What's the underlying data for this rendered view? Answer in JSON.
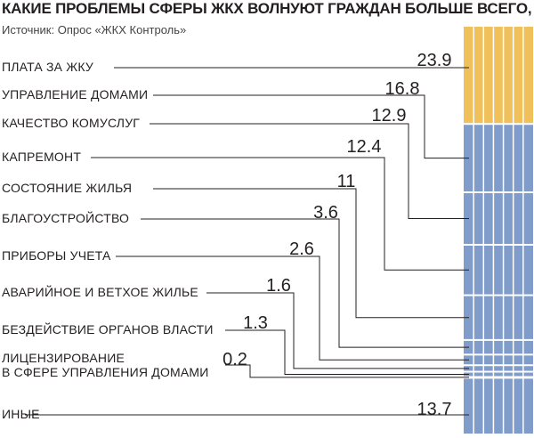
{
  "chart_data": {
    "type": "bar",
    "title": "КАКИЕ ПРОБЛЕМЫ СФЕРЫ ЖКХ ВОЛНУЮТ ГРАЖДАН БОЛЬШЕ ВСЕГО, %",
    "source": "Источник: Опрос «ЖКХ Контроль»",
    "categories": [
      [
        "ПЛАТА ЗА ЖКУ"
      ],
      [
        "УПРАВЛЕНИЕ ДОМАМИ"
      ],
      [
        "КАЧЕСТВО КОМУСЛУГ"
      ],
      [
        "КАПРЕМОНТ"
      ],
      [
        "СОСТОЯНИЕ ЖИЛЬЯ"
      ],
      [
        "БЛАГОУСТРОЙСТВО"
      ],
      [
        "ПРИБОРЫ УЧЕТА"
      ],
      [
        "АВАРИЙНОЕ И ВЕТХОЕ ЖИЛЬЕ"
      ],
      [
        "БЕЗДЕЙСТВИЕ ОРГАНОВ ВЛАСТИ"
      ],
      [
        "ЛИЦЕНЗИРОВАНИЕ",
        "В СФЕРЕ УПРАВЛЕНИЯ ДОМАМИ"
      ],
      [
        "ИНЫЕ"
      ]
    ],
    "values": [
      23.9,
      16.8,
      12.9,
      12.4,
      11,
      3.6,
      2.6,
      1.6,
      1.3,
      0.2,
      13.7
    ],
    "value_labels": [
      "23.9",
      "16.8",
      "12.9",
      "12.4",
      "11",
      "3.6",
      "2.6",
      "1.6",
      "1.3",
      "0.2",
      "13.7"
    ],
    "colors": {
      "highlight": "#f0c05a",
      "base": "#7f9ccb",
      "divider": "#ffffff",
      "text": "#231f20"
    }
  }
}
